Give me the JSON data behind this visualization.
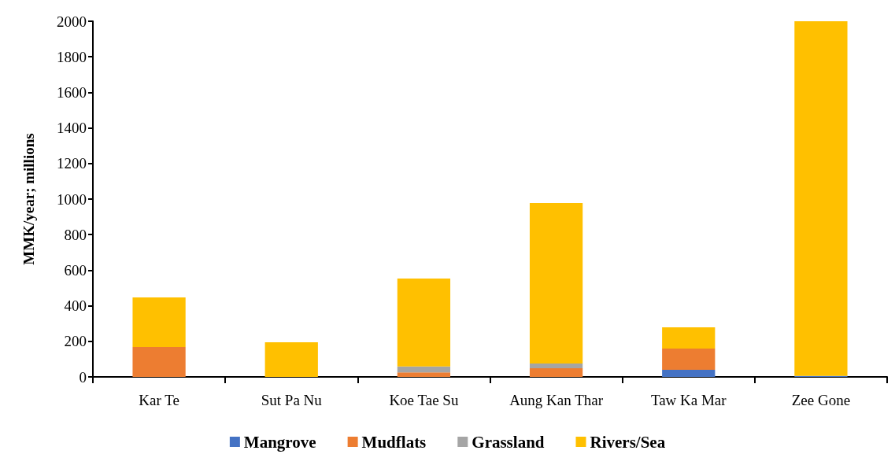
{
  "chart_data": {
    "type": "bar",
    "stacked": true,
    "ylabel": "MMK/year; millions",
    "categories": [
      "Kar Te",
      "Sut Pa Nu",
      "Koe Tae Su",
      "Aung Kan Thar",
      "Taw Ka Mar",
      "Zee Gone"
    ],
    "series": [
      {
        "name": "Mangrove",
        "color": "#4472c4",
        "values": [
          0,
          0,
          0,
          0,
          40,
          5
        ]
      },
      {
        "name": "Mudflats",
        "color": "#ed7d31",
        "values": [
          168,
          0,
          25,
          49,
          119,
          0
        ]
      },
      {
        "name": "Grassland",
        "color": "#a5a5a5",
        "values": [
          0,
          0,
          34,
          26,
          0,
          0
        ]
      },
      {
        "name": "Rivers/Sea",
        "color": "#ffc000",
        "values": [
          279,
          195,
          494,
          903,
          120,
          1995
        ]
      }
    ],
    "ylim": [
      0,
      2000
    ],
    "yticks": [
      0,
      200,
      400,
      600,
      800,
      1000,
      1200,
      1400,
      1600,
      1800,
      2000
    ],
    "grid": false,
    "legend": "bottom"
  }
}
